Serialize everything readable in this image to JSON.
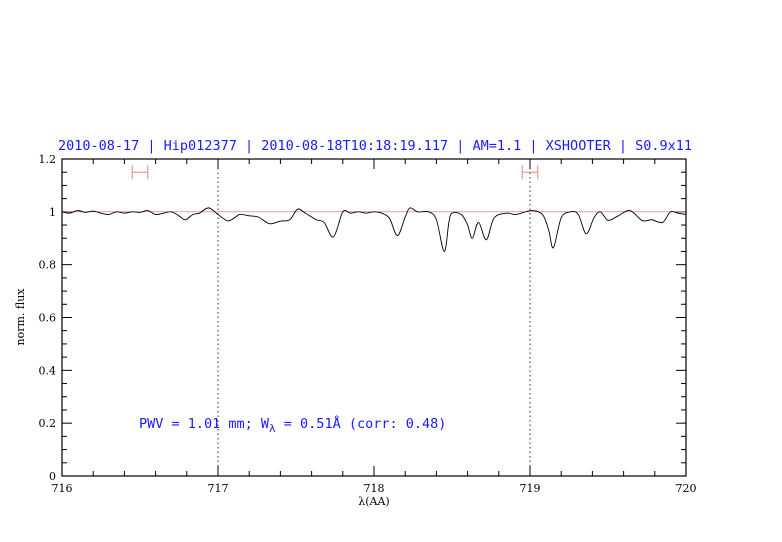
{
  "chart_data": {
    "type": "line",
    "title": "2010-08-17 | Hip012377 | 2010-08-18T10:18:19.117 | AM=1.1 | XSHOOTER | S0.9x11",
    "xlabel": "λ(AA)",
    "ylabel": "norm. flux",
    "xlim": [
      716,
      720
    ],
    "ylim": [
      0,
      1.2
    ],
    "x_ticks": [
      "716",
      "717",
      "718",
      "719",
      "720"
    ],
    "y_ticks": [
      "0",
      "0.2",
      "0.4",
      "0.6",
      "0.8",
      "1",
      "1.2"
    ],
    "grid": false,
    "reference_line": {
      "y": 1.0,
      "color": "#e06060"
    },
    "dotted_verticals": [
      717,
      719
    ],
    "error_bars": [
      {
        "x": 716.5,
        "half_width": 0.05,
        "y": 1.15,
        "color": "#f08080"
      },
      {
        "x": 719.0,
        "half_width": 0.05,
        "y": 1.15,
        "color": "#f08080"
      }
    ],
    "annotation": {
      "prefix": "PWV = 1.01 mm; W",
      "subscript": "λ",
      "suffix": " = 0.51Å (corr: 0.48)",
      "color": "#1a1aff"
    },
    "series": [
      {
        "color": "#000000",
        "x": [
          716.0,
          716.05,
          716.1,
          716.15,
          716.2,
          716.25,
          716.3,
          716.35,
          716.4,
          716.45,
          716.5,
          716.55,
          716.6,
          716.65,
          716.7,
          716.75,
          716.79,
          716.84,
          716.88,
          716.94,
          717.0,
          717.06,
          717.1,
          717.14,
          717.2,
          717.26,
          717.33,
          717.4,
          717.46,
          717.51,
          717.56,
          717.63,
          717.68,
          717.74,
          717.8,
          717.85,
          717.9,
          717.95,
          718.0,
          718.05,
          718.1,
          718.15,
          718.2,
          718.23,
          718.28,
          718.35,
          718.4,
          718.45,
          718.48,
          718.5,
          718.56,
          718.6,
          718.63,
          718.67,
          718.72,
          718.77,
          718.85,
          718.91,
          719.01,
          719.08,
          719.12,
          719.15,
          719.2,
          719.26,
          719.31,
          719.36,
          719.41,
          719.45,
          719.5,
          719.56,
          719.64,
          719.72,
          719.78,
          719.85,
          719.9,
          719.95,
          720.0
        ],
        "y": [
          1.0,
          0.995,
          1.005,
          0.998,
          1.003,
          0.995,
          0.99,
          1.0,
          0.995,
          1.0,
          0.998,
          1.005,
          0.99,
          0.995,
          1.0,
          0.985,
          0.97,
          0.99,
          0.995,
          1.015,
          0.99,
          0.966,
          0.975,
          0.99,
          0.985,
          0.98,
          0.955,
          0.965,
          0.97,
          1.01,
          0.995,
          0.97,
          0.96,
          0.905,
          1.0,
          0.995,
          1.0,
          0.995,
          1.0,
          0.995,
          0.975,
          0.91,
          0.98,
          1.015,
          1.0,
          1.0,
          0.97,
          0.85,
          0.96,
          0.995,
          0.99,
          0.95,
          0.9,
          0.96,
          0.894,
          0.977,
          0.995,
          0.99,
          1.005,
          0.99,
          0.93,
          0.864,
          0.977,
          1.0,
          0.99,
          0.917,
          0.977,
          1.0,
          0.968,
          0.983,
          1.005,
          0.967,
          0.97,
          0.96,
          1.0,
          0.995,
          0.99
        ]
      }
    ]
  }
}
